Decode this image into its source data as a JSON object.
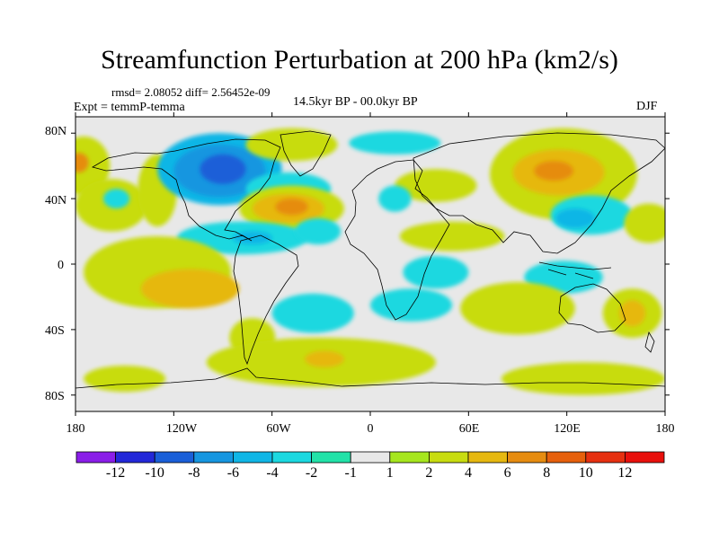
{
  "title": "Streamfunction Perturbation at 200 hPa (km2/s)",
  "stats": "rmsd= 2.08052  diff= 2.56452e-09",
  "experiment": "Expt = temmP-temma",
  "period": "14.5kyr BP - 00.0kyr BP",
  "season": "DJF",
  "lat_labels": [
    "80N",
    "40N",
    "0",
    "40S",
    "80S"
  ],
  "lon_labels": [
    "180",
    "120W",
    "60W",
    "0",
    "60E",
    "120E",
    "180"
  ],
  "colorbar": {
    "labels": [
      "-12",
      "-10",
      "-8",
      "-6",
      "-4",
      "-2",
      "-1",
      "1",
      "2",
      "4",
      "6",
      "8",
      "10",
      "12"
    ],
    "colors": [
      "#8a1ee8",
      "#2328d8",
      "#1a5fd8",
      "#1696e0",
      "#10b6e6",
      "#1cd8e0",
      "#22e2a8",
      "#e8e8e8",
      "#a6e61e",
      "#c8dc10",
      "#e6b810",
      "#e68c10",
      "#e6600c",
      "#e63010",
      "#e8100c"
    ]
  },
  "map": {
    "background": "#e8e8e8",
    "anomalies": [
      {
        "lon": -175,
        "lat": 60,
        "rx": 16,
        "ry": 18,
        "level": "2"
      },
      {
        "lon": -178,
        "lat": 62,
        "rx": 6,
        "ry": 6,
        "level": "6"
      },
      {
        "lon": -158,
        "lat": 36,
        "rx": 22,
        "ry": 16,
        "level": "2"
      },
      {
        "lon": -155,
        "lat": 40,
        "rx": 8,
        "ry": 6,
        "level": "-2"
      },
      {
        "lon": -130,
        "lat": 45,
        "rx": 12,
        "ry": 22,
        "level": "2"
      },
      {
        "lon": -92,
        "lat": 58,
        "rx": 38,
        "ry": 22,
        "level": "-4"
      },
      {
        "lon": -92,
        "lat": 57,
        "rx": 28,
        "ry": 16,
        "level": "-6"
      },
      {
        "lon": -90,
        "lat": 58,
        "rx": 14,
        "ry": 9,
        "level": "-8"
      },
      {
        "lon": -48,
        "lat": 73,
        "rx": 28,
        "ry": 10,
        "level": "2"
      },
      {
        "lon": -50,
        "lat": 46,
        "rx": 26,
        "ry": 10,
        "level": "-2"
      },
      {
        "lon": -48,
        "lat": 34,
        "rx": 32,
        "ry": 14,
        "level": "2"
      },
      {
        "lon": -50,
        "lat": 34,
        "rx": 22,
        "ry": 9,
        "level": "4"
      },
      {
        "lon": -48,
        "lat": 35,
        "rx": 10,
        "ry": 5,
        "level": "6"
      },
      {
        "lon": -78,
        "lat": 16,
        "rx": 40,
        "ry": 10,
        "level": "-2"
      },
      {
        "lon": -72,
        "lat": 16,
        "rx": 12,
        "ry": 4,
        "level": "-4"
      },
      {
        "lon": -32,
        "lat": 20,
        "rx": 14,
        "ry": 8,
        "level": "-2"
      },
      {
        "lon": 50,
        "lat": 17,
        "rx": 32,
        "ry": 9,
        "level": "2"
      },
      {
        "lon": 40,
        "lat": 48,
        "rx": 25,
        "ry": 10,
        "level": "2"
      },
      {
        "lon": 15,
        "lat": 74,
        "rx": 28,
        "ry": 7,
        "level": "-2"
      },
      {
        "lon": 15,
        "lat": 40,
        "rx": 10,
        "ry": 8,
        "level": "-2"
      },
      {
        "lon": 118,
        "lat": 55,
        "rx": 45,
        "ry": 28,
        "level": "2"
      },
      {
        "lon": 115,
        "lat": 56,
        "rx": 28,
        "ry": 14,
        "level": "4"
      },
      {
        "lon": 112,
        "lat": 57,
        "rx": 12,
        "ry": 6,
        "level": "6"
      },
      {
        "lon": 135,
        "lat": 30,
        "rx": 25,
        "ry": 12,
        "level": "-2"
      },
      {
        "lon": 125,
        "lat": 28,
        "rx": 12,
        "ry": 6,
        "level": "-4"
      },
      {
        "lon": 170,
        "lat": 25,
        "rx": 15,
        "ry": 12,
        "level": "2"
      },
      {
        "lon": 118,
        "lat": -8,
        "rx": 24,
        "ry": 10,
        "level": "-2"
      },
      {
        "lon": 160,
        "lat": -30,
        "rx": 18,
        "ry": 15,
        "level": "2"
      },
      {
        "lon": 160,
        "lat": -30,
        "rx": 8,
        "ry": 8,
        "level": "4"
      },
      {
        "lon": -130,
        "lat": -5,
        "rx": 45,
        "ry": 22,
        "level": "2"
      },
      {
        "lon": -110,
        "lat": -15,
        "rx": 30,
        "ry": 12,
        "level": "4"
      },
      {
        "lon": -35,
        "lat": -30,
        "rx": 25,
        "ry": 12,
        "level": "-2"
      },
      {
        "lon": -72,
        "lat": -45,
        "rx": 14,
        "ry": 12,
        "level": "2"
      },
      {
        "lon": 25,
        "lat": -25,
        "rx": 25,
        "ry": 10,
        "level": "-2"
      },
      {
        "lon": 40,
        "lat": -5,
        "rx": 20,
        "ry": 10,
        "level": "-2"
      },
      {
        "lon": 90,
        "lat": -27,
        "rx": 35,
        "ry": 16,
        "level": "2"
      },
      {
        "lon": -30,
        "lat": -60,
        "rx": 70,
        "ry": 15,
        "level": "2"
      },
      {
        "lon": -28,
        "lat": -58,
        "rx": 12,
        "ry": 5,
        "level": "4"
      },
      {
        "lon": 130,
        "lat": -70,
        "rx": 50,
        "ry": 10,
        "level": "2"
      },
      {
        "lon": -150,
        "lat": -70,
        "rx": 25,
        "ry": 8,
        "level": "2"
      }
    ]
  }
}
